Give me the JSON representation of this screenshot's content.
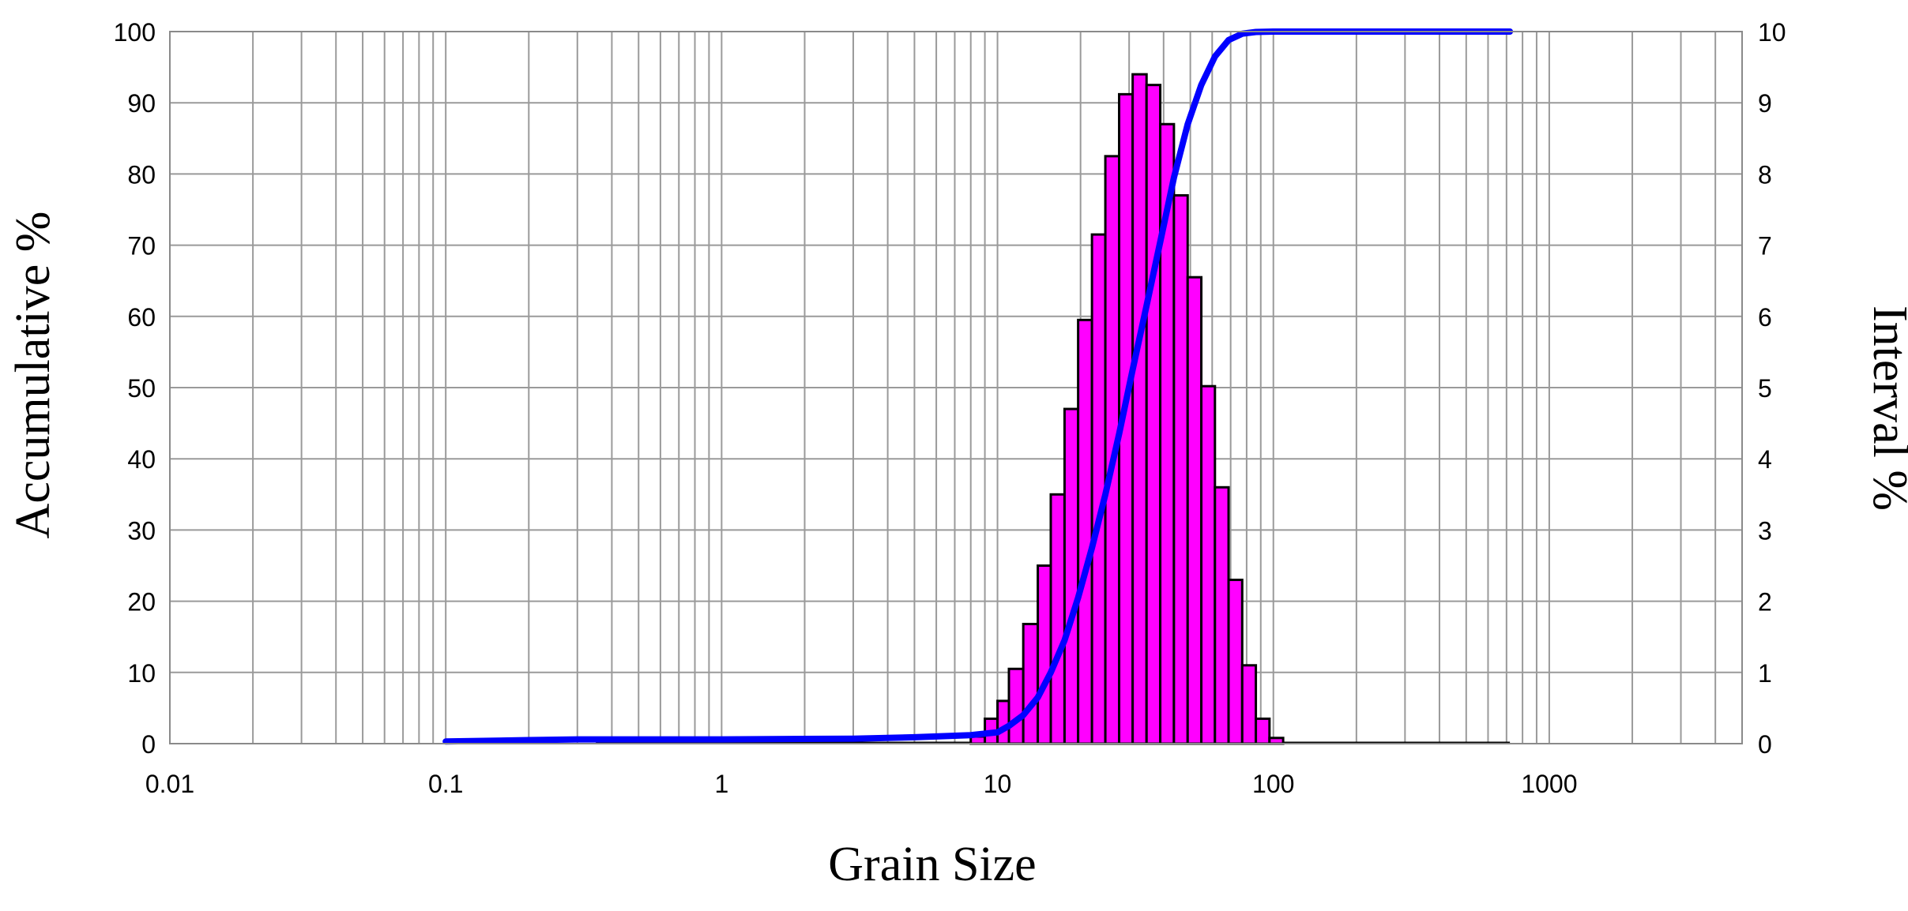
{
  "chart_data": {
    "type": "bar",
    "xlabel": "Grain Size",
    "ylabel": "Accumulative %",
    "y2label": "Interval %",
    "x_scale": "log",
    "xlim": [
      0.01,
      5000
    ],
    "ylim": [
      0,
      100
    ],
    "y2lim": [
      0,
      10
    ],
    "x_tick_labels": [
      "0.01",
      "0.1",
      "1",
      "10",
      "100",
      "1000"
    ],
    "y_tick_labels": [
      "0",
      "10",
      "20",
      "30",
      "40",
      "50",
      "60",
      "70",
      "80",
      "90",
      "100"
    ],
    "y2_tick_labels": [
      "0",
      "1",
      "2",
      "3",
      "4",
      "5",
      "6",
      "7",
      "8",
      "9",
      "10"
    ],
    "grid": true,
    "colors": {
      "bars": "#ff00ff",
      "bar_edge": "#000000",
      "cumulative": "#0000ff",
      "grid": "#9a9a9a"
    },
    "series": [
      {
        "kind": "histogram",
        "axis": "right",
        "bins": [
          {
            "x0": 8.0,
            "x1": 9.0,
            "value": 0.1
          },
          {
            "x0": 9.0,
            "x1": 10.0,
            "value": 0.35
          },
          {
            "x0": 10.0,
            "x1": 11.0,
            "value": 0.6
          },
          {
            "x0": 11.0,
            "x1": 12.4,
            "value": 1.05
          },
          {
            "x0": 12.4,
            "x1": 14.0,
            "value": 1.68
          },
          {
            "x0": 14.0,
            "x1": 15.6,
            "value": 2.5
          },
          {
            "x0": 15.6,
            "x1": 17.5,
            "value": 3.5
          },
          {
            "x0": 17.5,
            "x1": 19.6,
            "value": 4.7
          },
          {
            "x0": 19.6,
            "x1": 22.0,
            "value": 5.95
          },
          {
            "x0": 22.0,
            "x1": 24.6,
            "value": 7.15
          },
          {
            "x0": 24.6,
            "x1": 27.6,
            "value": 8.25
          },
          {
            "x0": 27.6,
            "x1": 30.9,
            "value": 9.12
          },
          {
            "x0": 30.9,
            "x1": 34.7,
            "value": 9.4
          },
          {
            "x0": 34.7,
            "x1": 38.9,
            "value": 9.25
          },
          {
            "x0": 38.9,
            "x1": 43.6,
            "value": 8.7
          },
          {
            "x0": 43.6,
            "x1": 48.9,
            "value": 7.7
          },
          {
            "x0": 48.9,
            "x1": 54.8,
            "value": 6.55
          },
          {
            "x0": 54.8,
            "x1": 61.4,
            "value": 5.02
          },
          {
            "x0": 61.4,
            "x1": 68.8,
            "value": 3.6
          },
          {
            "x0": 68.8,
            "x1": 77.1,
            "value": 2.3
          },
          {
            "x0": 77.1,
            "x1": 86.4,
            "value": 1.1
          },
          {
            "x0": 86.4,
            "x1": 96.8,
            "value": 0.35
          },
          {
            "x0": 96.8,
            "x1": 108.5,
            "value": 0.08
          }
        ],
        "baseline_extent": [
          0.35,
          720
        ]
      },
      {
        "kind": "cumulative-line",
        "axis": "left",
        "x": [
          0.1,
          0.2,
          0.3,
          1,
          3,
          5,
          8,
          10,
          11,
          12.4,
          14,
          15.6,
          17.5,
          19.6,
          22,
          24.6,
          27.6,
          30.9,
          34.7,
          38.9,
          43.6,
          48.9,
          54.8,
          61.4,
          68.8,
          77.1,
          86.4,
          100,
          720
        ],
        "y": [
          0.3,
          0.5,
          0.6,
          0.6,
          0.7,
          0.9,
          1.2,
          1.6,
          2.5,
          4,
          6.5,
          10,
          14.5,
          20.5,
          27.5,
          35,
          43.5,
          52.5,
          61.5,
          70.5,
          79.5,
          87,
          92.5,
          96.5,
          98.8,
          99.7,
          99.95,
          100,
          100
        ]
      }
    ]
  }
}
